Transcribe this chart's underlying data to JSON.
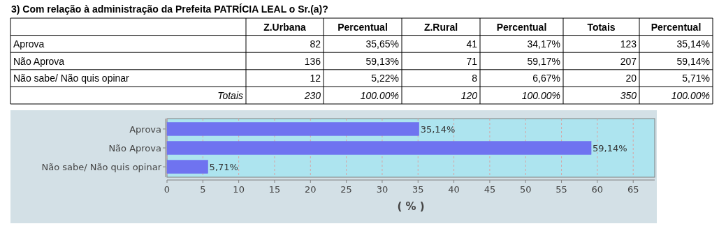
{
  "chart_data": [
    {
      "type": "other",
      "title": "3) Com relação à administração da Prefeita PATRÍCIA LEAL o Sr.(a)?",
      "categories": [
        "Aprova",
        "Não Aprova",
        "Não sabe/ Não quis opinar",
        "Totais"
      ],
      "series": [
        {
          "name": "Z.Urbana",
          "values": [
            82,
            136,
            12,
            230
          ],
          "value_labels": [
            "82",
            "136",
            "12",
            "230"
          ]
        },
        {
          "name": "Percentual",
          "values": [
            35.65,
            59.13,
            5.22,
            100
          ],
          "value_labels": [
            "35,65%",
            "59,13%",
            "5,22%",
            "100.00%"
          ]
        },
        {
          "name": "Z.Rural",
          "values": [
            41,
            71,
            8,
            120
          ],
          "value_labels": [
            "41",
            "71",
            "8",
            "120"
          ]
        },
        {
          "name": "Percentual",
          "values": [
            34.17,
            59.17,
            6.67,
            100
          ],
          "value_labels": [
            "34,17%",
            "59,17%",
            "6,67%",
            "100.00%"
          ]
        },
        {
          "name": "Totais",
          "values": [
            123,
            207,
            20,
            350
          ],
          "value_labels": [
            "123",
            "207",
            "20",
            "350"
          ]
        },
        {
          "name": "Percentual",
          "values": [
            35.14,
            59.14,
            5.71,
            100
          ],
          "value_labels": [
            "35,14%",
            "59,14%",
            "5,71%",
            "100.00%"
          ]
        }
      ]
    },
    {
      "type": "bar",
      "orientation": "horizontal",
      "categories": [
        "Aprova",
        "Não Aprova",
        "Não sabe/ Não quis opinar"
      ],
      "values": [
        35.14,
        59.14,
        5.71
      ],
      "value_labels": [
        "35,14%",
        "59,14%",
        "5,71%"
      ],
      "color": "#6f73f0",
      "xlabel": "( % )",
      "xlim": [
        0,
        68
      ],
      "xticks": [
        0,
        5,
        10,
        15,
        20,
        25,
        30,
        35,
        40,
        45,
        50,
        55,
        60,
        65
      ],
      "grid": "x"
    }
  ]
}
